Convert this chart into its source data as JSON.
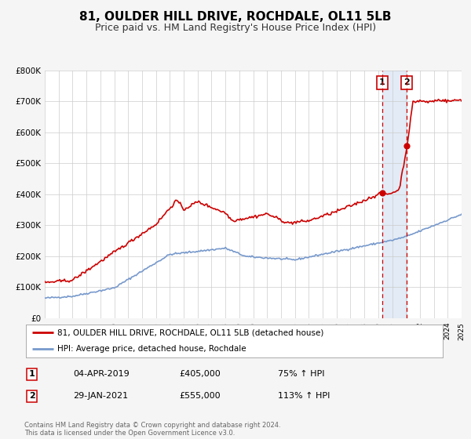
{
  "title": "81, OULDER HILL DRIVE, ROCHDALE, OL11 5LB",
  "subtitle": "Price paid vs. HM Land Registry's House Price Index (HPI)",
  "title_fontsize": 11,
  "subtitle_fontsize": 9,
  "ylim": [
    0,
    800000
  ],
  "xlim_start": 1995,
  "xlim_end": 2025,
  "ytick_labels": [
    "£0",
    "£100K",
    "£200K",
    "£300K",
    "£400K",
    "£500K",
    "£600K",
    "£700K",
    "£800K"
  ],
  "ytick_values": [
    0,
    100000,
    200000,
    300000,
    400000,
    500000,
    600000,
    700000,
    800000
  ],
  "property_color": "#cc0000",
  "hpi_color": "#7799cc",
  "sale1_date": 2019.27,
  "sale1_price": 405000,
  "sale1_text": "04-APR-2019",
  "sale1_pct": "75% ↑ HPI",
  "sale1_price_str": "£405,000",
  "sale2_date": 2021.07,
  "sale2_price": 555000,
  "sale2_text": "29-JAN-2021",
  "sale2_pct": "113% ↑ HPI",
  "sale2_price_str": "£555,000",
  "legend_property": "81, OULDER HILL DRIVE, ROCHDALE, OL11 5LB (detached house)",
  "legend_hpi": "HPI: Average price, detached house, Rochdale",
  "footnote1": "Contains HM Land Registry data © Crown copyright and database right 2024.",
  "footnote2": "This data is licensed under the Open Government Licence v3.0.",
  "background_color": "#f5f5f5",
  "plot_bg_color": "#ffffff",
  "shade_color": "#dde8f5"
}
